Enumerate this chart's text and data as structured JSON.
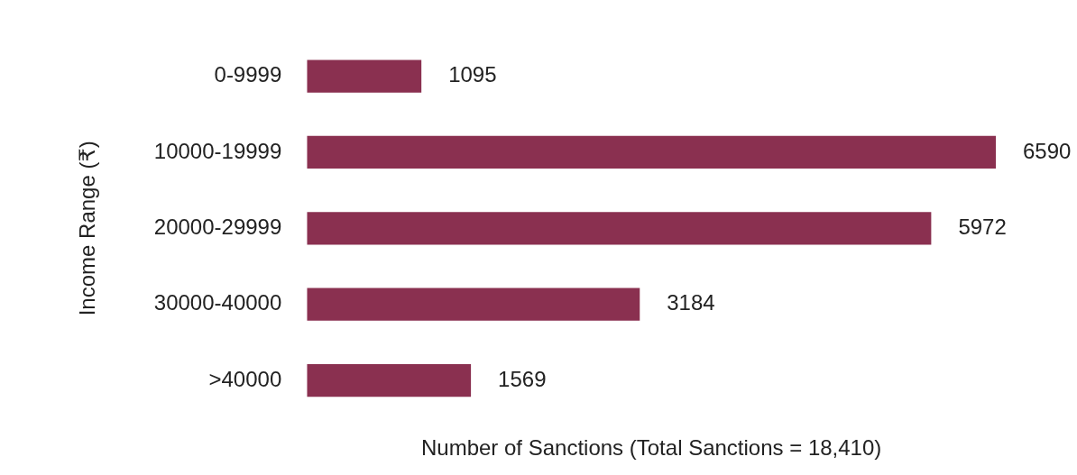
{
  "chart_data": {
    "type": "bar",
    "orientation": "horizontal",
    "categories": [
      "0-9999",
      "10000-19999",
      "20000-29999",
      "30000-40000",
      ">40000"
    ],
    "values": [
      1095,
      6590,
      5972,
      3184,
      1569
    ],
    "color": "#8a3050",
    "data_labels": true,
    "grid": false,
    "legend": false,
    "tick_labels": "y",
    "xlabel": "Number of Sanctions (Total Sanctions = 18,410)",
    "ylabel": "Income Range (₹)"
  }
}
